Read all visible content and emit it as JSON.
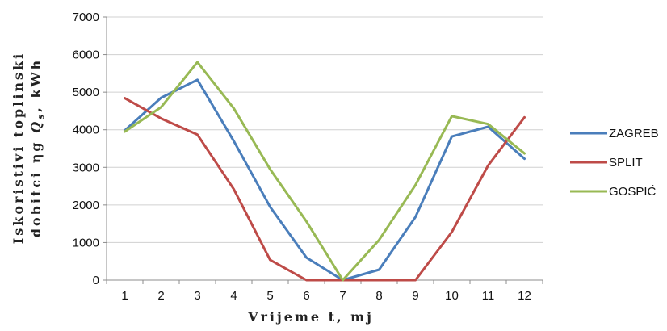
{
  "chart_data": {
    "type": "line",
    "title": "",
    "xlabel": "Vrijeme t, mj",
    "ylabel_line1": "Iskoristivi toplinski",
    "ylabel_line2_prefix": "dobitci ηg ",
    "ylabel_line2_symbol": "Q",
    "ylabel_line2_subscript": "s",
    "ylabel_line2_suffix": ", kWh",
    "x": [
      1,
      2,
      3,
      4,
      5,
      6,
      7,
      8,
      9,
      10,
      11,
      12
    ],
    "ylim": [
      0,
      7000
    ],
    "yticks": [
      0,
      1000,
      2000,
      3000,
      4000,
      5000,
      6000,
      7000
    ],
    "grid": "horizontal",
    "legend_position": "right",
    "series": [
      {
        "name": "ZAGREB",
        "color": "#4a7ebb",
        "values": [
          3980,
          4850,
          5330,
          3700,
          1950,
          600,
          0,
          280,
          1680,
          3820,
          4080,
          3230
        ]
      },
      {
        "name": "SPLIT",
        "color": "#be4b48",
        "values": [
          4840,
          4300,
          3870,
          2420,
          540,
          0,
          0,
          0,
          0,
          1280,
          3050,
          4330
        ]
      },
      {
        "name": "GOSPIĆ",
        "color": "#98b954",
        "values": [
          3950,
          4600,
          5800,
          4570,
          2950,
          1560,
          0,
          1070,
          2530,
          4360,
          4150,
          3370
        ]
      }
    ]
  }
}
